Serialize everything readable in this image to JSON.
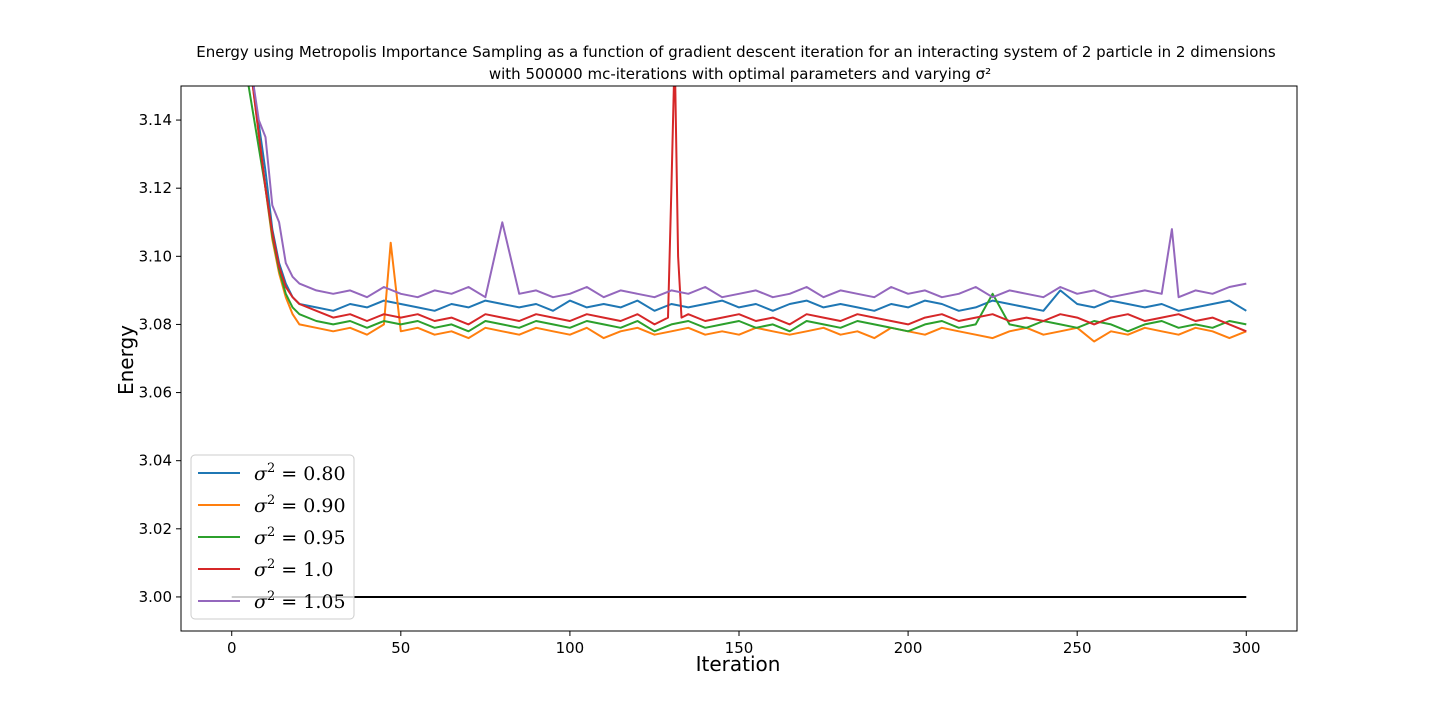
{
  "chart_data": {
    "type": "line",
    "title_line1": "Energy using Metropolis Importance Sampling as a function of gradient descent iteration for an interacting system of 2 particle in 2 dimensions",
    "title_line2": "with 500000 mc-iterations with optimal parameters and varying σ²",
    "xlabel": "Iteration",
    "ylabel": "Energy",
    "xlim": [
      -15,
      315
    ],
    "ylim": [
      2.99,
      3.15
    ],
    "xticks": [
      0,
      50,
      100,
      150,
      200,
      250,
      300
    ],
    "yticks": [
      3.0,
      3.02,
      3.04,
      3.06,
      3.08,
      3.1,
      3.12,
      3.14
    ],
    "xtick_labels": [
      "0",
      "50",
      "100",
      "150",
      "200",
      "250",
      "300"
    ],
    "ytick_labels": [
      "3.00",
      "3.02",
      "3.04",
      "3.06",
      "3.08",
      "3.10",
      "3.12",
      "3.14"
    ],
    "grid": false,
    "legend_position": "lower-left",
    "reference_line": {
      "y": 3.0,
      "x_start": 0,
      "x_end": 300,
      "color": "#000000"
    },
    "series": [
      {
        "name": "σ² = 0.80",
        "sigma_label": "σ",
        "value_label": " = 0.80",
        "color": "#1f77b4",
        "x": [
          0,
          5,
          10,
          12,
          14,
          16,
          18,
          20,
          25,
          30,
          35,
          40,
          45,
          50,
          55,
          60,
          65,
          70,
          75,
          80,
          85,
          90,
          95,
          100,
          105,
          110,
          115,
          120,
          125,
          130,
          135,
          140,
          145,
          150,
          155,
          160,
          165,
          170,
          175,
          180,
          185,
          190,
          195,
          200,
          205,
          210,
          215,
          220,
          225,
          230,
          235,
          240,
          245,
          250,
          255,
          260,
          265,
          270,
          275,
          280,
          285,
          290,
          295,
          300
        ],
        "y": [
          3.25,
          3.16,
          3.125,
          3.108,
          3.098,
          3.092,
          3.088,
          3.086,
          3.085,
          3.084,
          3.086,
          3.085,
          3.087,
          3.086,
          3.085,
          3.084,
          3.086,
          3.085,
          3.087,
          3.086,
          3.085,
          3.086,
          3.084,
          3.087,
          3.085,
          3.086,
          3.085,
          3.087,
          3.084,
          3.086,
          3.085,
          3.086,
          3.087,
          3.085,
          3.086,
          3.084,
          3.086,
          3.087,
          3.085,
          3.086,
          3.085,
          3.084,
          3.086,
          3.085,
          3.087,
          3.086,
          3.084,
          3.085,
          3.087,
          3.086,
          3.085,
          3.084,
          3.09,
          3.086,
          3.085,
          3.087,
          3.086,
          3.085,
          3.086,
          3.084,
          3.085,
          3.086,
          3.087,
          3.084
        ]
      },
      {
        "name": "σ² = 0.90",
        "sigma_label": "σ",
        "value_label": " = 0.90",
        "color": "#ff7f0e",
        "x": [
          0,
          5,
          10,
          12,
          14,
          16,
          18,
          20,
          25,
          30,
          35,
          40,
          45,
          47,
          50,
          55,
          60,
          65,
          70,
          75,
          80,
          85,
          90,
          95,
          100,
          105,
          110,
          115,
          120,
          125,
          130,
          135,
          140,
          145,
          150,
          155,
          160,
          165,
          170,
          175,
          180,
          185,
          190,
          195,
          200,
          205,
          210,
          215,
          220,
          225,
          230,
          235,
          240,
          245,
          250,
          255,
          260,
          265,
          270,
          275,
          280,
          285,
          290,
          295,
          300
        ],
        "y": [
          3.25,
          3.16,
          3.12,
          3.105,
          3.095,
          3.088,
          3.083,
          3.08,
          3.079,
          3.078,
          3.079,
          3.077,
          3.08,
          3.104,
          3.078,
          3.079,
          3.077,
          3.078,
          3.076,
          3.079,
          3.078,
          3.077,
          3.079,
          3.078,
          3.077,
          3.079,
          3.076,
          3.078,
          3.079,
          3.077,
          3.078,
          3.079,
          3.077,
          3.078,
          3.077,
          3.079,
          3.078,
          3.077,
          3.078,
          3.079,
          3.077,
          3.078,
          3.076,
          3.079,
          3.078,
          3.077,
          3.079,
          3.078,
          3.077,
          3.076,
          3.078,
          3.079,
          3.077,
          3.078,
          3.079,
          3.075,
          3.078,
          3.077,
          3.079,
          3.078,
          3.077,
          3.079,
          3.078,
          3.076,
          3.078
        ]
      },
      {
        "name": "σ² = 0.95",
        "sigma_label": "σ",
        "value_label": " = 0.95",
        "color": "#2ca02c",
        "x": [
          0,
          5,
          10,
          12,
          14,
          16,
          18,
          20,
          25,
          30,
          35,
          40,
          45,
          50,
          55,
          60,
          65,
          70,
          75,
          80,
          85,
          90,
          95,
          100,
          105,
          110,
          115,
          120,
          125,
          130,
          135,
          140,
          145,
          150,
          155,
          160,
          165,
          170,
          175,
          180,
          185,
          190,
          195,
          200,
          205,
          210,
          215,
          220,
          225,
          230,
          235,
          240,
          245,
          250,
          255,
          260,
          265,
          270,
          275,
          280,
          285,
          290,
          295,
          300
        ],
        "y": [
          3.25,
          3.15,
          3.12,
          3.106,
          3.096,
          3.089,
          3.085,
          3.083,
          3.081,
          3.08,
          3.081,
          3.079,
          3.081,
          3.08,
          3.081,
          3.079,
          3.08,
          3.078,
          3.081,
          3.08,
          3.079,
          3.081,
          3.08,
          3.079,
          3.081,
          3.08,
          3.079,
          3.081,
          3.078,
          3.08,
          3.081,
          3.079,
          3.08,
          3.081,
          3.079,
          3.08,
          3.078,
          3.081,
          3.08,
          3.079,
          3.081,
          3.08,
          3.079,
          3.078,
          3.08,
          3.081,
          3.079,
          3.08,
          3.089,
          3.08,
          3.079,
          3.081,
          3.08,
          3.079,
          3.081,
          3.08,
          3.078,
          3.08,
          3.081,
          3.079,
          3.08,
          3.079,
          3.081,
          3.08
        ]
      },
      {
        "name": "σ² = 1.0",
        "sigma_label": "σ",
        "value_label": " = 1.0",
        "color": "#d62728",
        "x": [
          0,
          5,
          10,
          12,
          14,
          16,
          18,
          20,
          25,
          30,
          35,
          40,
          45,
          50,
          55,
          60,
          65,
          70,
          75,
          80,
          85,
          90,
          95,
          100,
          105,
          110,
          115,
          120,
          125,
          129,
          130,
          131,
          132,
          133,
          135,
          140,
          145,
          150,
          155,
          160,
          165,
          170,
          175,
          180,
          185,
          190,
          195,
          200,
          205,
          210,
          215,
          220,
          225,
          230,
          235,
          240,
          245,
          250,
          255,
          260,
          265,
          270,
          275,
          280,
          285,
          290,
          295,
          300
        ],
        "y": [
          3.25,
          3.16,
          3.12,
          3.107,
          3.097,
          3.091,
          3.088,
          3.086,
          3.084,
          3.082,
          3.083,
          3.081,
          3.083,
          3.082,
          3.083,
          3.081,
          3.082,
          3.08,
          3.083,
          3.082,
          3.081,
          3.083,
          3.082,
          3.081,
          3.083,
          3.082,
          3.081,
          3.083,
          3.08,
          3.082,
          3.12,
          3.16,
          3.1,
          3.082,
          3.083,
          3.081,
          3.082,
          3.083,
          3.081,
          3.082,
          3.08,
          3.083,
          3.082,
          3.081,
          3.083,
          3.082,
          3.081,
          3.08,
          3.082,
          3.083,
          3.081,
          3.082,
          3.083,
          3.081,
          3.082,
          3.081,
          3.083,
          3.082,
          3.08,
          3.082,
          3.083,
          3.081,
          3.082,
          3.083,
          3.081,
          3.082,
          3.08,
          3.078
        ]
      },
      {
        "name": "σ² = 1.05",
        "sigma_label": "σ",
        "value_label": " = 1.05",
        "color": "#9467bd",
        "x": [
          0,
          5,
          8,
          10,
          12,
          14,
          16,
          18,
          20,
          25,
          30,
          35,
          40,
          45,
          50,
          55,
          60,
          65,
          70,
          75,
          80,
          85,
          90,
          95,
          100,
          105,
          110,
          115,
          120,
          125,
          130,
          135,
          140,
          145,
          150,
          155,
          160,
          165,
          170,
          175,
          180,
          185,
          190,
          195,
          200,
          205,
          210,
          215,
          220,
          225,
          230,
          235,
          240,
          245,
          250,
          255,
          260,
          265,
          270,
          275,
          278,
          280,
          285,
          290,
          295,
          300
        ],
        "y": [
          3.25,
          3.16,
          3.14,
          3.135,
          3.115,
          3.11,
          3.098,
          3.094,
          3.092,
          3.09,
          3.089,
          3.09,
          3.088,
          3.091,
          3.089,
          3.088,
          3.09,
          3.089,
          3.091,
          3.088,
          3.11,
          3.089,
          3.09,
          3.088,
          3.089,
          3.091,
          3.088,
          3.09,
          3.089,
          3.088,
          3.09,
          3.089,
          3.091,
          3.088,
          3.089,
          3.09,
          3.088,
          3.089,
          3.091,
          3.088,
          3.09,
          3.089,
          3.088,
          3.091,
          3.089,
          3.09,
          3.088,
          3.089,
          3.091,
          3.088,
          3.09,
          3.089,
          3.088,
          3.091,
          3.089,
          3.09,
          3.088,
          3.089,
          3.09,
          3.089,
          3.108,
          3.088,
          3.09,
          3.089,
          3.091,
          3.092
        ]
      }
    ]
  }
}
